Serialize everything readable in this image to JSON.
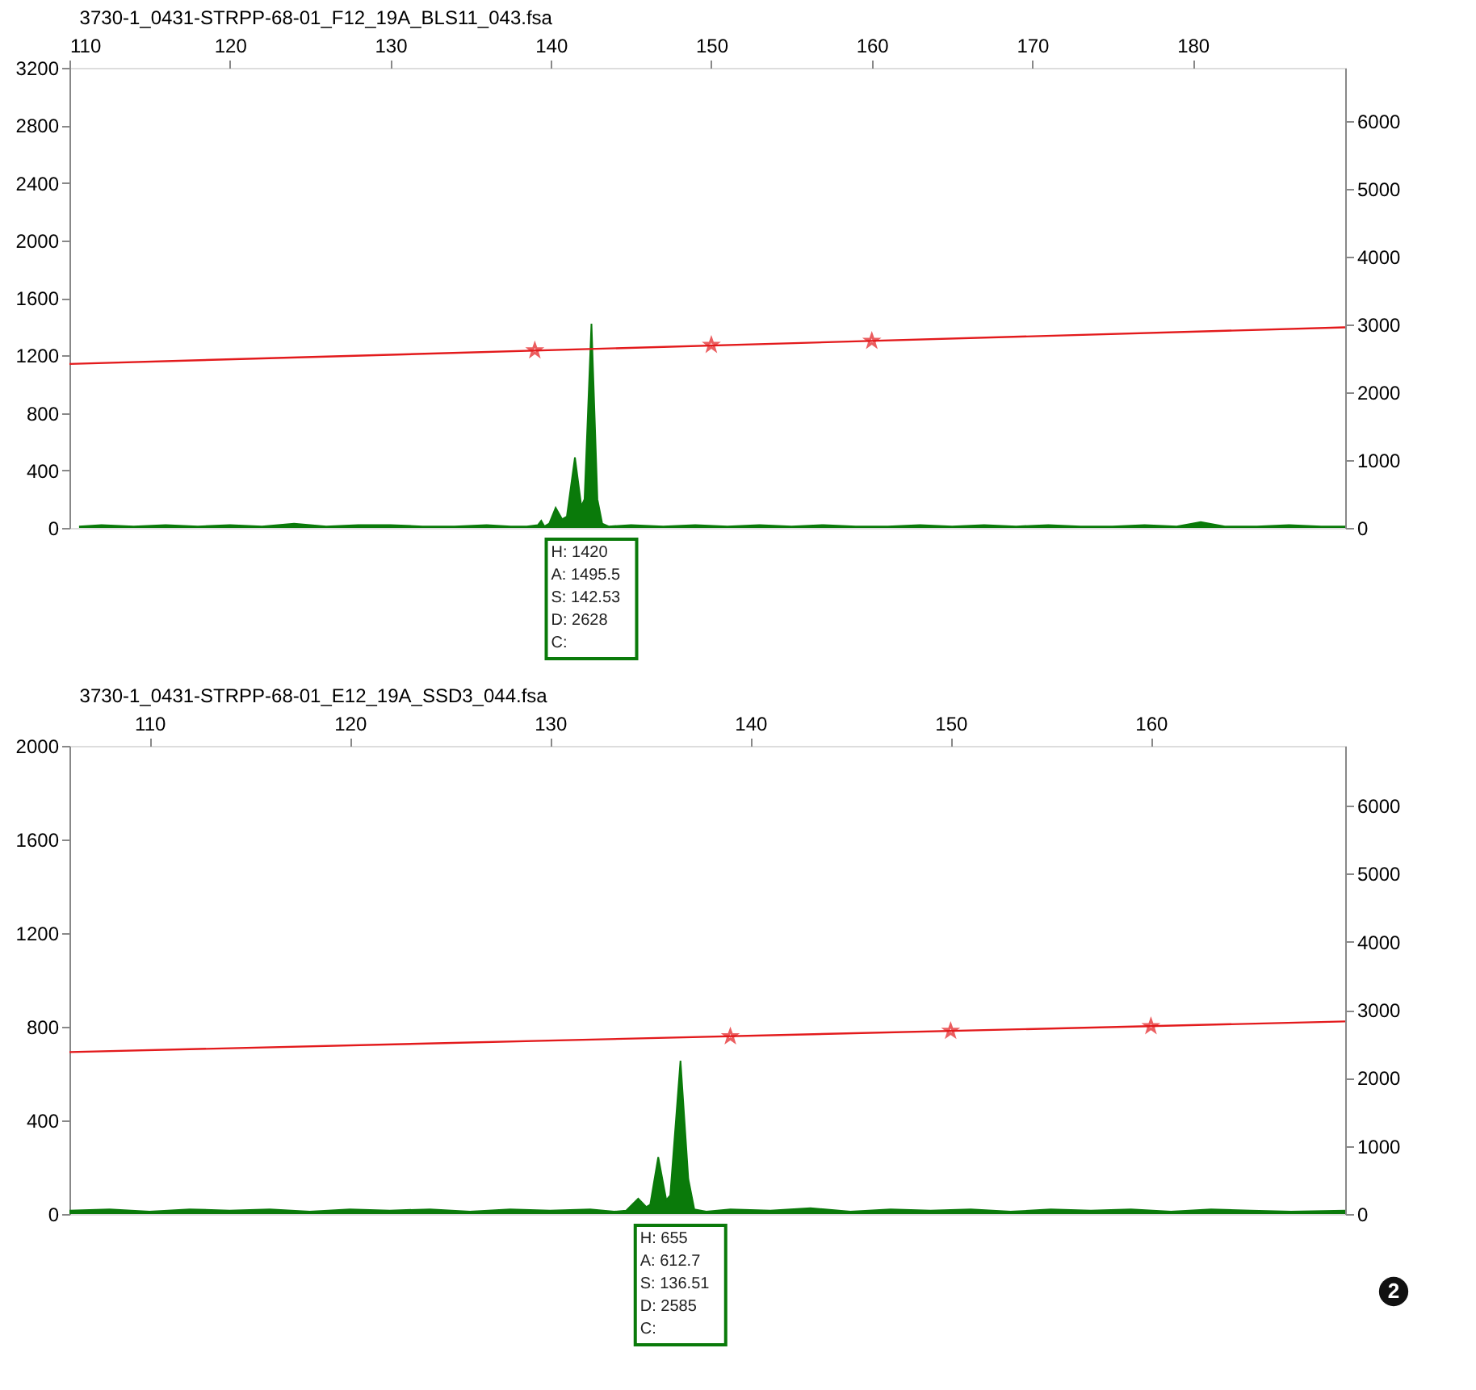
{
  "chart_data": [
    {
      "type": "area",
      "title": "3730-1_0431-STRPP-68-01_F12_19A_BLS11_043.fsa",
      "xlim": [
        110,
        189.5
      ],
      "xticks": [
        110,
        120,
        130,
        140,
        150,
        160,
        170,
        180
      ],
      "ylim": [
        0,
        3200
      ],
      "yticks": [
        0,
        400,
        800,
        1200,
        1600,
        2000,
        2400,
        2800,
        3200
      ],
      "y2lim": [
        0,
        6790
      ],
      "y2ticks": [
        0,
        1000,
        2000,
        3000,
        4000,
        5000,
        6000
      ],
      "grid": false,
      "series": [
        {
          "type": "area",
          "color": "#0a7a0a",
          "x": [
            110.6,
            112,
            114,
            116,
            118,
            120,
            122,
            124,
            126,
            128,
            130,
            132,
            134,
            136,
            137.5,
            138.5,
            139.2,
            139.4,
            139.6,
            139.9,
            140.3,
            140.7,
            141.0,
            141.5,
            141.9,
            142.1,
            142.53,
            142.9,
            143.2,
            143.6,
            145,
            147,
            149,
            151,
            153,
            155,
            157,
            159,
            161,
            163,
            165,
            167,
            169,
            171,
            173,
            175,
            177,
            179,
            180.5,
            182,
            184,
            186,
            188,
            189.5
          ],
          "values": [
            10,
            20,
            10,
            20,
            10,
            20,
            10,
            30,
            10,
            20,
            20,
            10,
            10,
            20,
            10,
            10,
            20,
            50,
            10,
            30,
            140,
            60,
            80,
            490,
            150,
            200,
            1420,
            200,
            30,
            10,
            20,
            10,
            20,
            10,
            20,
            10,
            20,
            10,
            10,
            20,
            10,
            20,
            10,
            20,
            10,
            10,
            20,
            10,
            40,
            10,
            10,
            20,
            10,
            10
          ]
        },
        {
          "type": "line",
          "axis": "y2",
          "color": "#e31a1c",
          "x": [
            110,
            189.5
          ],
          "values": [
            2420,
            2960
          ]
        },
        {
          "type": "scatter",
          "axis": "y2",
          "marker": "star",
          "color": "#e31a1c",
          "x": [
            139,
            150,
            160
          ],
          "values": [
            2620,
            2700,
            2760
          ]
        }
      ],
      "annotations": [
        "H: 1420\nA: 1495.5\nS: 142.53\nD: 2628\nC:"
      ]
    },
    {
      "type": "area",
      "title": "3730-1_0431-STRPP-68-01_E12_19A_SSD3_044.fsa",
      "xlim": [
        106,
        169.7
      ],
      "xticks": [
        110,
        120,
        130,
        140,
        150,
        160
      ],
      "ylim": [
        0,
        2000
      ],
      "yticks": [
        0,
        400,
        800,
        1200,
        1600,
        2000
      ],
      "y2lim": [
        0,
        6880
      ],
      "y2ticks": [
        0,
        1000,
        2000,
        3000,
        4000,
        5000,
        6000
      ],
      "grid": false,
      "series": [
        {
          "type": "area",
          "color": "#0a7a0a",
          "x": [
            106,
            108,
            110,
            112,
            114,
            116,
            118,
            120,
            122,
            124,
            126,
            128,
            130,
            132,
            133.2,
            133.8,
            134.4,
            134.8,
            135.0,
            135.4,
            135.8,
            136.0,
            136.51,
            136.9,
            137.2,
            137.8,
            139,
            141,
            143,
            145,
            147,
            149,
            151,
            153,
            155,
            157,
            159,
            161,
            163,
            165,
            167,
            169.7
          ],
          "values": [
            15,
            20,
            10,
            20,
            15,
            20,
            10,
            20,
            15,
            20,
            10,
            20,
            15,
            20,
            10,
            15,
            66,
            30,
            40,
            243,
            60,
            80,
            655,
            150,
            20,
            10,
            20,
            15,
            25,
            10,
            20,
            15,
            20,
            10,
            20,
            15,
            20,
            10,
            20,
            15,
            10,
            15
          ]
        },
        {
          "type": "line",
          "axis": "y2",
          "color": "#e31a1c",
          "x": [
            106,
            169.7
          ],
          "values": [
            2380,
            2830
          ]
        },
        {
          "type": "scatter",
          "axis": "y2",
          "marker": "star",
          "color": "#e31a1c",
          "x": [
            139,
            150,
            160
          ],
          "values": [
            2610,
            2690,
            2760
          ]
        }
      ],
      "annotations": [
        "H: 655\nA: 612.7\nS: 136.51\nD: 2585\nC:",
        "2"
      ]
    }
  ]
}
